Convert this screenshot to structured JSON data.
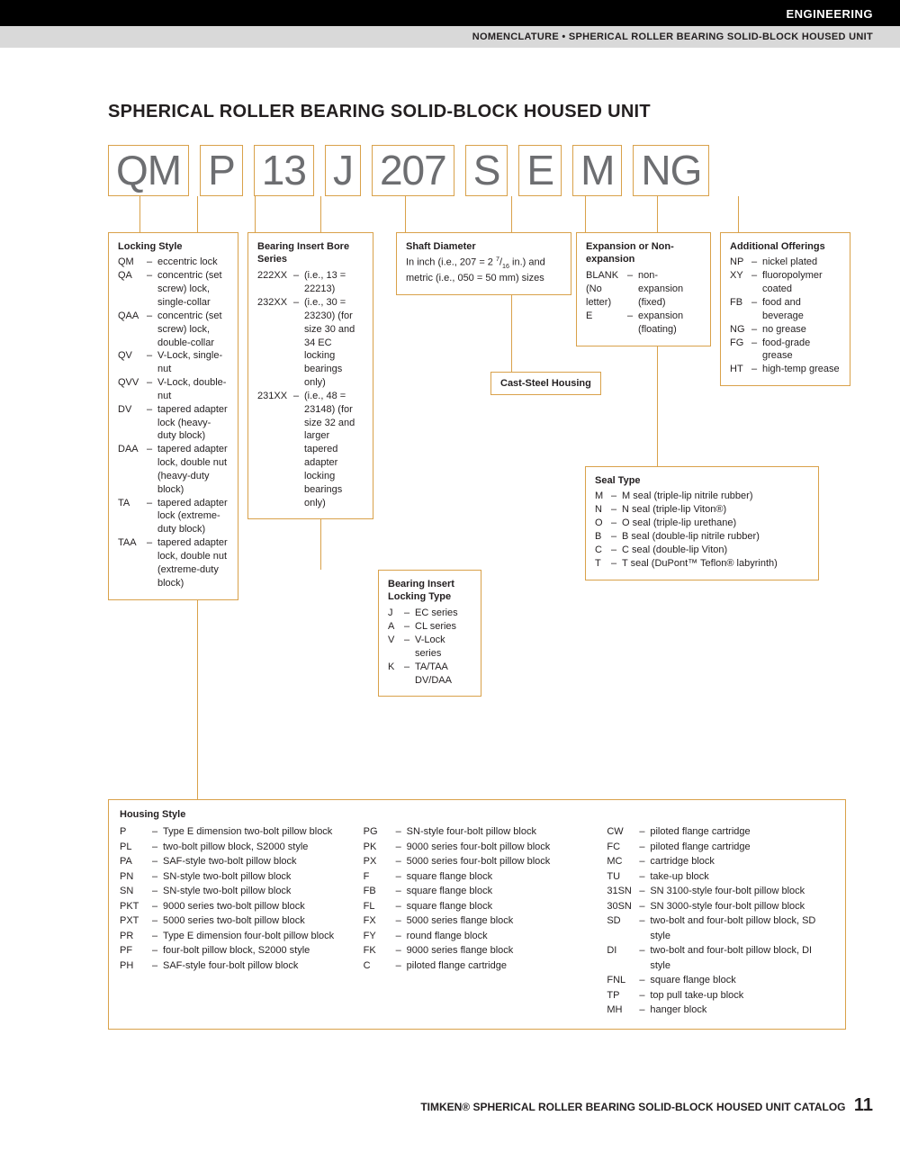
{
  "header": {
    "section": "ENGINEERING",
    "breadcrumb": "NOMENCLATURE • SPHERICAL ROLLER BEARING SOLID-BLOCK HOUSED UNIT"
  },
  "title": "SPHERICAL ROLLER BEARING SOLID-BLOCK HOUSED UNIT",
  "code_parts": [
    "QM",
    "P",
    "13",
    "J",
    "207",
    "S",
    "E",
    "M",
    "NG"
  ],
  "box_colors": {
    "border": "#d9a14a",
    "code_text": "#6d6e71"
  },
  "locking_style": {
    "title": "Locking Style",
    "items": [
      {
        "c": "QM",
        "d": "eccentric lock"
      },
      {
        "c": "QA",
        "d": "concentric (set screw) lock, single-collar"
      },
      {
        "c": "QAA",
        "d": "concentric (set screw) lock, double-collar"
      },
      {
        "c": "QV",
        "d": "V-Lock, single-nut"
      },
      {
        "c": "QVV",
        "d": "V-Lock, double-nut"
      },
      {
        "c": "DV",
        "d": "tapered adapter lock (heavy-duty block)"
      },
      {
        "c": "DAA",
        "d": "tapered adapter lock, double nut (heavy-duty block)"
      },
      {
        "c": "TA",
        "d": "tapered adapter lock (extreme-duty block)"
      },
      {
        "c": "TAA",
        "d": "tapered adapter lock, double nut (extreme-duty block)"
      }
    ]
  },
  "bore_series": {
    "title": "Bearing Insert Bore Series",
    "items": [
      {
        "c": "222XX",
        "d": "(i.e., 13 = 22213)"
      },
      {
        "c": "232XX",
        "d": "(i.e., 30 = 23230) (for size 30 and 34 EC locking bearings only)"
      },
      {
        "c": "231XX",
        "d": "(i.e., 48 = 23148) (for size 32 and larger tapered adapter locking bearings only)"
      }
    ]
  },
  "locking_type": {
    "title": "Bearing Insert Locking Type",
    "items": [
      {
        "c": "J",
        "d": "EC series"
      },
      {
        "c": "A",
        "d": "CL series"
      },
      {
        "c": "V",
        "d": "V-Lock series"
      },
      {
        "c": "K",
        "d": "TA/TAA DV/DAA"
      }
    ]
  },
  "shaft_diameter": {
    "title": "Shaft Diameter",
    "desc": "In inch (i.e., 207 = 2 7/16 in.) and metric (i.e., 050 = 50 mm) sizes"
  },
  "cast_steel": {
    "title": "Cast-Steel Housing"
  },
  "expansion": {
    "title": "Expansion or Non-expansion",
    "items": [
      {
        "c": "BLANK (No letter)",
        "d": "non-expansion (fixed)"
      },
      {
        "c": "E",
        "d": "expansion (floating)"
      }
    ]
  },
  "seal_type": {
    "title": "Seal Type",
    "items": [
      {
        "c": "M",
        "d": "M seal (triple-lip nitrile rubber)"
      },
      {
        "c": "N",
        "d": "N seal (triple-lip Viton®)"
      },
      {
        "c": "O",
        "d": "O seal (triple-lip urethane)"
      },
      {
        "c": "B",
        "d": "B seal (double-lip nitrile rubber)"
      },
      {
        "c": "C",
        "d": "C seal (double-lip Viton)"
      },
      {
        "c": "T",
        "d": "T seal (DuPont™ Teflon® labyrinth)"
      }
    ]
  },
  "additional": {
    "title": "Additional Offerings",
    "items": [
      {
        "c": "NP",
        "d": "nickel plated"
      },
      {
        "c": "XY",
        "d": "fluoropolymer coated"
      },
      {
        "c": "FB",
        "d": "food and beverage"
      },
      {
        "c": "NG",
        "d": "no grease"
      },
      {
        "c": "FG",
        "d": "food-grade grease"
      },
      {
        "c": "HT",
        "d": "high-temp grease"
      }
    ]
  },
  "housing_style": {
    "title": "Housing Style",
    "col1": [
      {
        "c": "P",
        "d": "Type E dimension two-bolt pillow block"
      },
      {
        "c": "PL",
        "d": "two-bolt pillow block, S2000 style"
      },
      {
        "c": "PA",
        "d": "SAF-style two-bolt pillow block"
      },
      {
        "c": "PN",
        "d": "SN-style two-bolt pillow block"
      },
      {
        "c": "SN",
        "d": "SN-style two-bolt pillow block"
      },
      {
        "c": "PKT",
        "d": "9000 series two-bolt pillow block"
      },
      {
        "c": "PXT",
        "d": "5000 series two-bolt pillow block"
      },
      {
        "c": "PR",
        "d": "Type E dimension four-bolt pillow block"
      },
      {
        "c": "PF",
        "d": "four-bolt pillow block, S2000 style"
      },
      {
        "c": "PH",
        "d": "SAF-style four-bolt pillow block"
      }
    ],
    "col2": [
      {
        "c": "PG",
        "d": "SN-style four-bolt pillow block"
      },
      {
        "c": "PK",
        "d": "9000 series four-bolt pillow block"
      },
      {
        "c": "PX",
        "d": "5000 series four-bolt pillow block"
      },
      {
        "c": "F",
        "d": "square flange block"
      },
      {
        "c": "FB",
        "d": "square flange block"
      },
      {
        "c": "FL",
        "d": "square flange block"
      },
      {
        "c": "FX",
        "d": "5000 series flange block"
      },
      {
        "c": "FY",
        "d": "round flange block"
      },
      {
        "c": "FK",
        "d": "9000 series flange block"
      },
      {
        "c": "C",
        "d": "piloted flange cartridge"
      }
    ],
    "col3": [
      {
        "c": "CW",
        "d": "piloted flange cartridge"
      },
      {
        "c": "FC",
        "d": "piloted flange cartridge"
      },
      {
        "c": "MC",
        "d": "cartridge block"
      },
      {
        "c": "TU",
        "d": "take-up block"
      },
      {
        "c": "31SN",
        "d": "SN 3100-style four-bolt pillow block"
      },
      {
        "c": "30SN",
        "d": "SN 3000-style four-bolt pillow block"
      },
      {
        "c": "SD",
        "d": "two-bolt and four-bolt pillow block, SD style"
      },
      {
        "c": "DI",
        "d": "two-bolt and four-bolt pillow block, DI style"
      },
      {
        "c": "FNL",
        "d": "square flange block"
      },
      {
        "c": "TP",
        "d": "top pull take-up block"
      },
      {
        "c": "MH",
        "d": "hanger block"
      }
    ]
  },
  "footer": {
    "brand": "TIMKEN®",
    "text": "SPHERICAL ROLLER BEARING SOLID-BLOCK HOUSED UNIT CATALOG",
    "page": "11"
  }
}
